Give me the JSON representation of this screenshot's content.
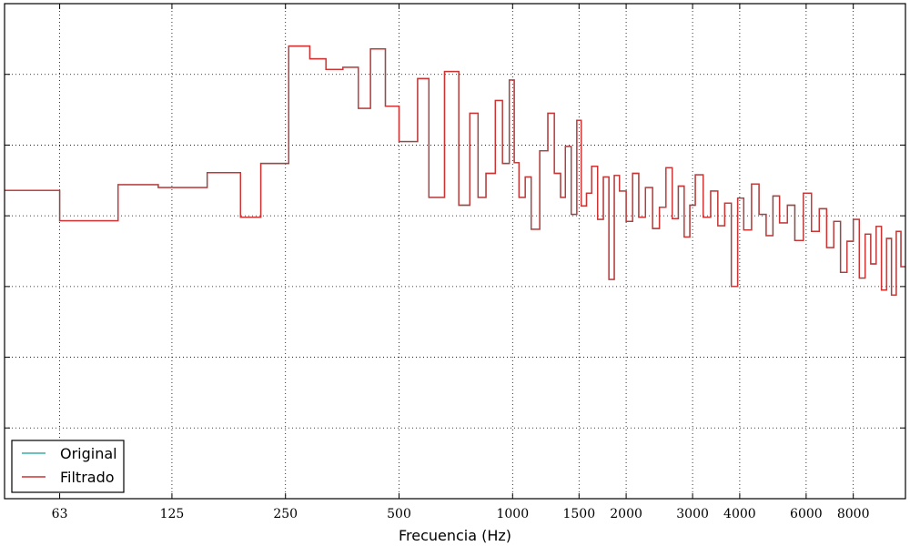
{
  "chart_data": {
    "type": "line",
    "xlabel": "Frecuencia (Hz)",
    "ylabel": "",
    "title": "",
    "x_scale": "log",
    "xlim": [
      45,
      11000
    ],
    "ylim": [
      0,
      7
    ],
    "grid": true,
    "legend_placement": "bottom-left",
    "x_ticks": [
      63,
      125,
      250,
      500,
      1000,
      1500,
      2000,
      3000,
      4000,
      6000,
      8000
    ],
    "x_tick_labels": [
      "63",
      "125",
      "250",
      "500",
      "1000",
      "1500",
      "2000",
      "3000",
      "4000",
      "6000",
      "8000"
    ],
    "y_ticks": [
      1,
      2,
      3,
      4,
      5,
      6
    ],
    "series": [
      {
        "name": "Original",
        "color": "#3aafa9",
        "step": true,
        "x": [
          45,
          63,
          90,
          115,
          155,
          190,
          215,
          255,
          290,
          320,
          355,
          390,
          420,
          460,
          500,
          560,
          600,
          660,
          720,
          770,
          810,
          850,
          900,
          940,
          980,
          1010,
          1040,
          1080,
          1120,
          1180,
          1240,
          1290,
          1340,
          1380,
          1430,
          1480,
          1520,
          1570,
          1620,
          1680,
          1740,
          1800,
          1860,
          1920,
          2000,
          2080,
          2160,
          2250,
          2350,
          2450,
          2550,
          2650,
          2750,
          2850,
          2950,
          3050,
          3200,
          3350,
          3500,
          3650,
          3800,
          3950,
          4100,
          4300,
          4500,
          4700,
          4900,
          5100,
          5350,
          5600,
          5900,
          6200,
          6500,
          6800,
          7100,
          7400,
          7700,
          8000,
          8300,
          8600,
          8900,
          9200,
          9500,
          9800,
          10100,
          10400,
          10700,
          11000
        ],
        "y": [
          4.36,
          3.93,
          4.44,
          4.4,
          4.61,
          3.98,
          4.74,
          6.4,
          6.22,
          6.07,
          6.1,
          5.52,
          6.36,
          5.55,
          5.05,
          5.94,
          4.26,
          6.04,
          4.15,
          5.45,
          4.26,
          4.6,
          5.63,
          4.74,
          5.92,
          4.75,
          4.26,
          4.55,
          3.81,
          4.92,
          5.45,
          4.6,
          4.26,
          4.98,
          4.02,
          5.35,
          4.14,
          4.32,
          4.7,
          3.95,
          4.55,
          3.1,
          4.57,
          4.35,
          3.92,
          4.6,
          3.98,
          4.4,
          3.82,
          4.12,
          4.68,
          3.96,
          4.42,
          3.7,
          4.15,
          4.58,
          3.98,
          4.35,
          3.86,
          4.18,
          3.0,
          4.25,
          3.8,
          4.45,
          4.02,
          3.72,
          4.28,
          3.9,
          4.15,
          3.65,
          4.32,
          3.78,
          4.1,
          3.55,
          3.92,
          3.2,
          3.64,
          3.95,
          3.12,
          3.74,
          3.32,
          3.85,
          2.95,
          3.68,
          2.88,
          3.78,
          3.28,
          3.5
        ]
      },
      {
        "name": "Filtrado",
        "color": "#cc3333",
        "step": true,
        "x": [
          45,
          63,
          90,
          115,
          155,
          190,
          215,
          255,
          290,
          320,
          355,
          390,
          420,
          460,
          500,
          560,
          600,
          660,
          720,
          770,
          810,
          850,
          900,
          940,
          980,
          1010,
          1040,
          1080,
          1120,
          1180,
          1240,
          1290,
          1340,
          1380,
          1430,
          1480,
          1520,
          1570,
          1620,
          1680,
          1740,
          1800,
          1860,
          1920,
          2000,
          2080,
          2160,
          2250,
          2350,
          2450,
          2550,
          2650,
          2750,
          2850,
          2950,
          3050,
          3200,
          3350,
          3500,
          3650,
          3800,
          3950,
          4100,
          4300,
          4500,
          4700,
          4900,
          5100,
          5350,
          5600,
          5900,
          6200,
          6500,
          6800,
          7100,
          7400,
          7700,
          8000,
          8300,
          8600,
          8900,
          9200,
          9500,
          9800,
          10100,
          10400,
          10700,
          11000
        ],
        "y": [
          4.36,
          3.93,
          4.44,
          4.4,
          4.61,
          3.98,
          4.74,
          6.4,
          6.22,
          6.07,
          6.1,
          5.52,
          6.36,
          5.55,
          5.05,
          5.94,
          4.26,
          6.04,
          4.15,
          5.45,
          4.26,
          4.6,
          5.63,
          4.74,
          5.92,
          4.75,
          4.26,
          4.55,
          3.81,
          4.92,
          5.45,
          4.6,
          4.26,
          4.98,
          4.02,
          5.35,
          4.14,
          4.32,
          4.7,
          3.95,
          4.55,
          3.1,
          4.57,
          4.35,
          3.92,
          4.6,
          3.98,
          4.4,
          3.82,
          4.12,
          4.68,
          3.96,
          4.42,
          3.7,
          4.15,
          4.58,
          3.98,
          4.35,
          3.86,
          4.18,
          3.0,
          4.25,
          3.8,
          4.45,
          4.02,
          3.72,
          4.28,
          3.9,
          4.15,
          3.65,
          4.32,
          3.78,
          4.1,
          3.55,
          3.92,
          3.2,
          3.64,
          3.95,
          3.12,
          3.74,
          3.32,
          3.85,
          2.95,
          3.68,
          2.88,
          3.78,
          3.28,
          3.5
        ]
      }
    ]
  }
}
